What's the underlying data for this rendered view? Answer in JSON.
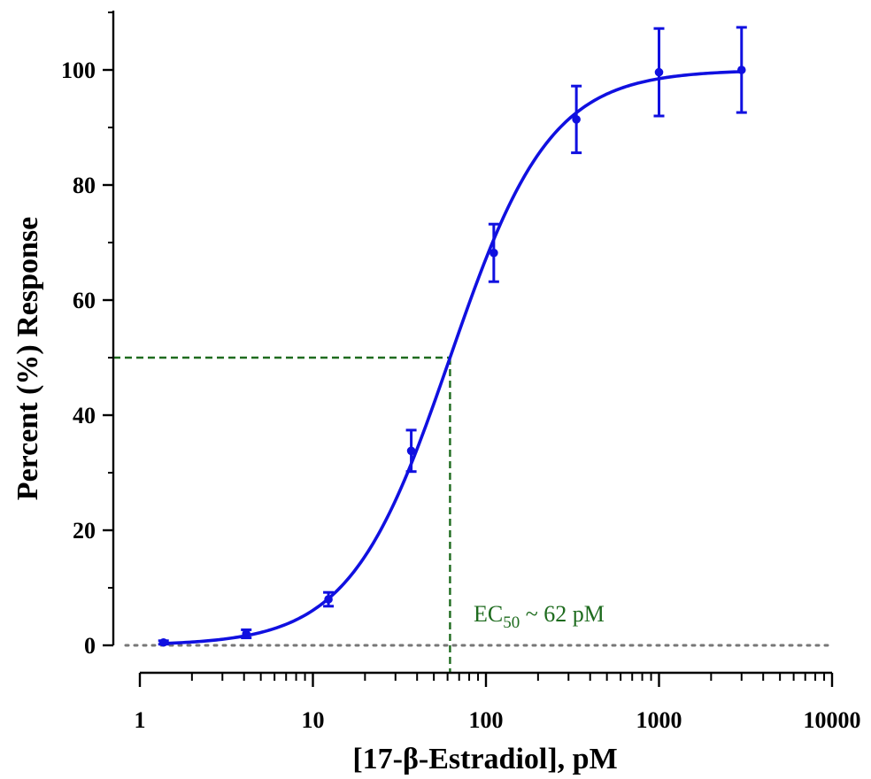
{
  "chart_data": {
    "type": "scatter",
    "xscale": "log",
    "xlim": [
      1,
      10000
    ],
    "ylim": [
      0,
      110
    ],
    "xlabel": "[17-β-Estradiol], pM",
    "ylabel": "Percent (%) Response",
    "x_ticks": [
      "1",
      "10",
      "100",
      "1000",
      "10000"
    ],
    "y_ticks": [
      "0",
      "20",
      "40",
      "60",
      "80",
      "100"
    ],
    "x_tick_values": [
      1,
      10,
      100,
      1000,
      10000
    ],
    "y_tick_values": [
      0,
      20,
      40,
      60,
      80,
      100
    ],
    "grid": false,
    "series": [
      {
        "x": [
          1.37,
          4.12,
          12.3,
          37.0,
          111,
          333,
          1000,
          3000
        ],
        "y": [
          0.5,
          2.0,
          8.0,
          33.8,
          68.2,
          91.4,
          99.6,
          100.0
        ],
        "error": [
          0.3,
          0.7,
          1.2,
          3.6,
          5.0,
          5.8,
          7.6,
          7.4
        ],
        "color": "#1010e0"
      }
    ],
    "fit": {
      "model": "sigmoid",
      "bottom": 0,
      "top": 100,
      "ec50": 62,
      "hill": 1.5,
      "color": "#1010e0"
    },
    "reference_lines": {
      "color": "#1e6b1e",
      "baseline_color": "#777777",
      "x": 62,
      "y": 50
    },
    "annotation": {
      "prefix": "EC",
      "subscript": "50",
      "suffix": " ~ 62 pM"
    }
  }
}
